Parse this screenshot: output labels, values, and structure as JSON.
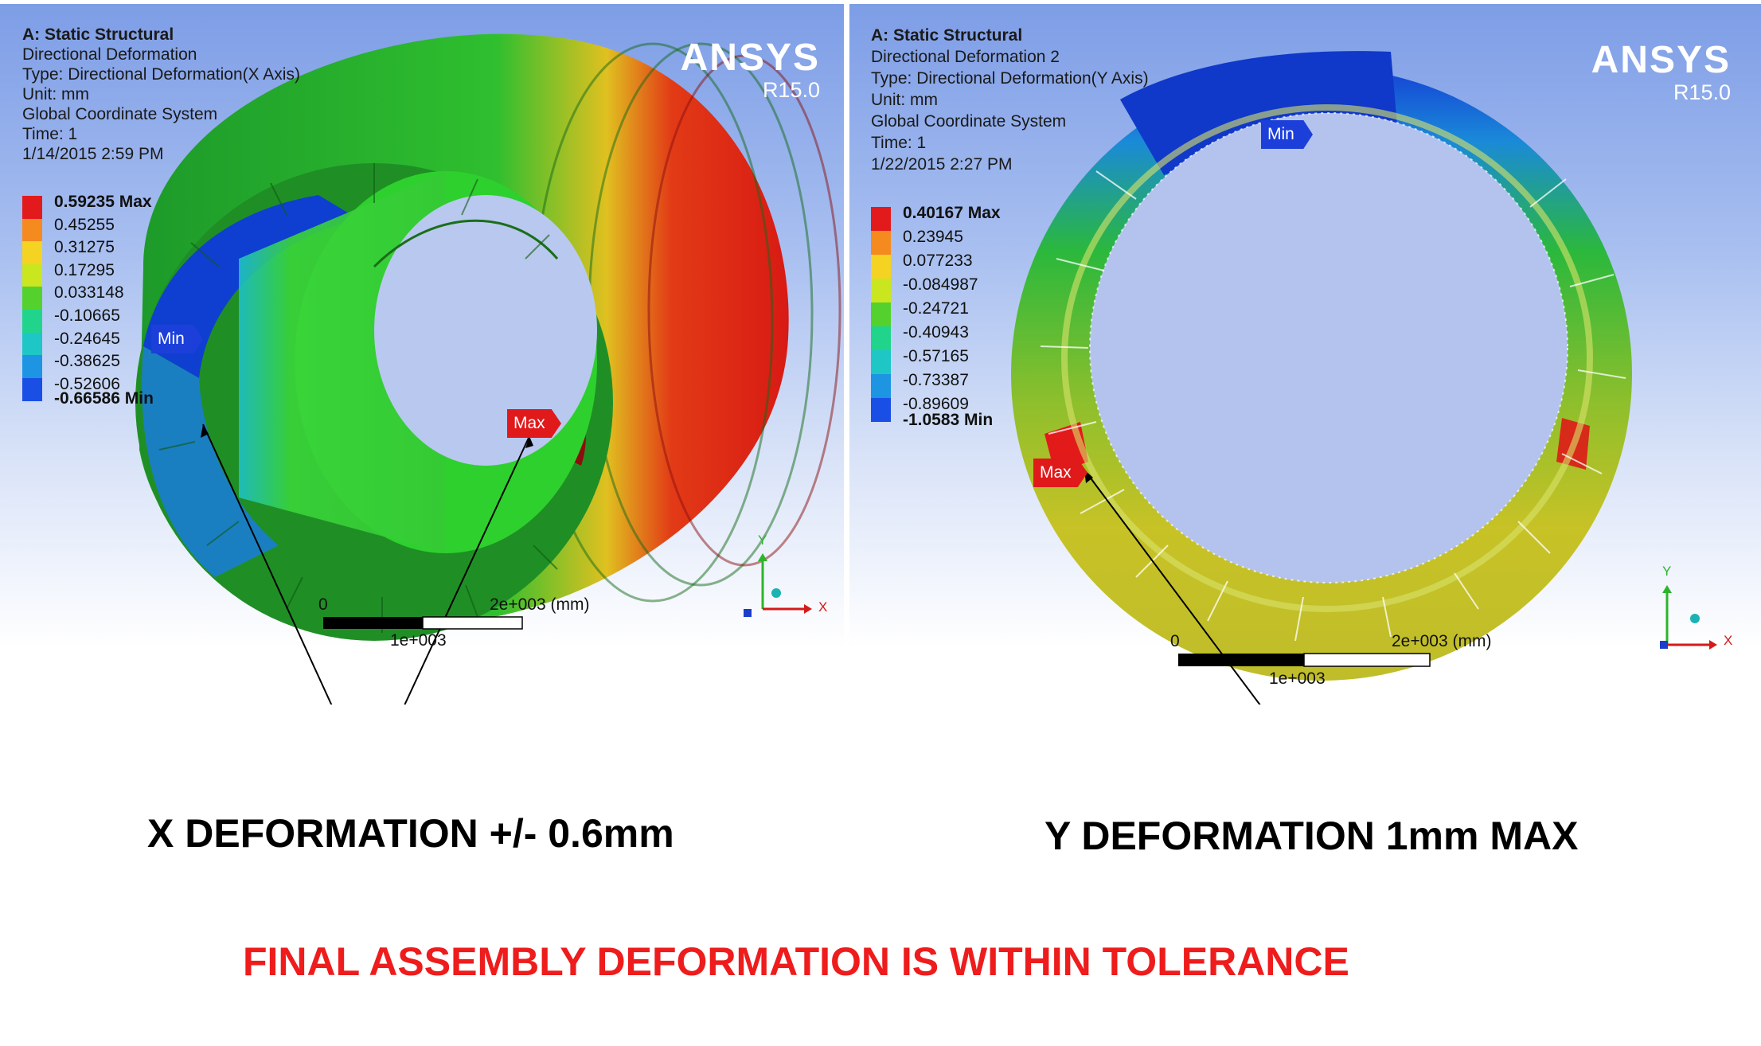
{
  "left_panel": {
    "info": {
      "analysis": "A: Static Structural",
      "result_name": "Directional Deformation",
      "type": "Type: Directional Deformation(X Axis)",
      "unit": "Unit: mm",
      "coord": "Global Coordinate System",
      "time": "Time: 1",
      "date": "1/14/2015 2:59 PM"
    },
    "legend": [
      "0.59235 Max",
      "0.45255",
      "0.31275",
      "0.17295",
      "0.033148",
      "-0.10665",
      "-0.24645",
      "-0.38625",
      "-0.52606",
      "-0.66586 Min"
    ],
    "min_label": "Min",
    "max_label": "Max",
    "scale": {
      "zero": "0",
      "end": "2e+003 (mm)",
      "mid": "1e+003"
    },
    "axis": {
      "y": "Y",
      "x": "X"
    }
  },
  "right_panel": {
    "info": {
      "analysis": "A: Static Structural",
      "result_name": "Directional Deformation 2",
      "type": "Type: Directional Deformation(Y Axis)",
      "unit": "Unit: mm",
      "coord": "Global Coordinate System",
      "time": "Time: 1",
      "date": "1/22/2015 2:27 PM"
    },
    "legend": [
      "0.40167 Max",
      "0.23945",
      "0.077233",
      "-0.084987",
      "-0.24721",
      "-0.40943",
      "-0.57165",
      "-0.73387",
      "-0.89609",
      "-1.0583 Min"
    ],
    "min_label": "Min",
    "max_label": "Max",
    "scale": {
      "zero": "0",
      "end": "2e+003 (mm)",
      "mid": "1e+003"
    },
    "axis": {
      "y": "Y",
      "x": "X"
    }
  },
  "logo": {
    "brand": "ANSYS",
    "version": "R15.0"
  },
  "legend_colors": [
    "#e31a1c",
    "#f58a1f",
    "#f4d323",
    "#c9e61f",
    "#55d12e",
    "#21d48c",
    "#1ec6c6",
    "#1d95e3",
    "#1a4fe6"
  ],
  "captions": {
    "x_deformation": "X DEFORMATION +/- 0.6mm",
    "y_deformation": "Y DEFORMATION 1mm MAX",
    "conclusion": "FINAL ASSEMBLY DEFORMATION IS WITHIN TOLERANCE"
  },
  "caption_colors": {
    "main": "#000000",
    "conclusion": "#ee1c1c"
  }
}
